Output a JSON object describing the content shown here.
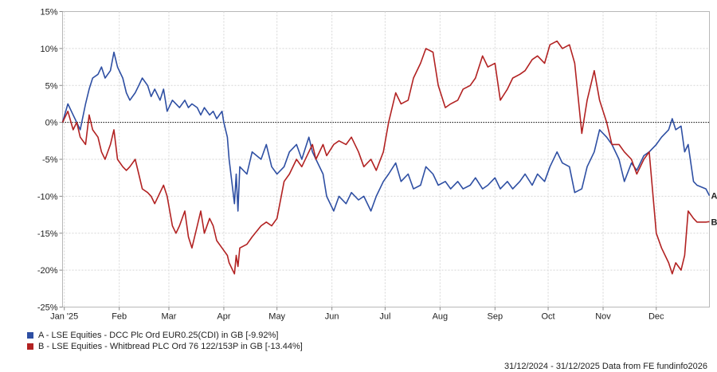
{
  "chart_data": {
    "type": "line",
    "y_unit": "%",
    "ylim": [
      -25,
      15
    ],
    "y_ticks": [
      15,
      10,
      5,
      0,
      -5,
      -10,
      -15,
      -20,
      -25
    ],
    "y_tick_labels": [
      "15%",
      "10%",
      "5%",
      "0%",
      "-5%",
      "-10%",
      "-15%",
      "-20%",
      "-25%"
    ],
    "x_range": [
      "2024-12-31",
      "2025-12-31"
    ],
    "x_ticks": [
      {
        "date": "2025-01-01",
        "label": "Jan '25"
      },
      {
        "date": "2025-02-01",
        "label": "Feb"
      },
      {
        "date": "2025-03-01",
        "label": "Mar"
      },
      {
        "date": "2025-04-01",
        "label": "Apr"
      },
      {
        "date": "2025-05-01",
        "label": "May"
      },
      {
        "date": "2025-06-01",
        "label": "Jun"
      },
      {
        "date": "2025-07-01",
        "label": "Jul"
      },
      {
        "date": "2025-08-01",
        "label": "Aug"
      },
      {
        "date": "2025-09-01",
        "label": "Sep"
      },
      {
        "date": "2025-10-01",
        "label": "Oct"
      },
      {
        "date": "2025-11-01",
        "label": "Nov"
      },
      {
        "date": "2025-12-01",
        "label": "Dec"
      }
    ],
    "grid": true,
    "zero_line": "dotted",
    "legend_position": "bottom-left",
    "series": [
      {
        "name": "A - LSE Equities - DCC Plc Ord EUR0.25(CDI) in GB [-9.92%]",
        "end_label": "A",
        "color": "#2e4fa3",
        "points": [
          [
            "2024-12-31",
            0
          ],
          [
            "2025-01-03",
            2.5
          ],
          [
            "2025-01-06",
            1
          ],
          [
            "2025-01-08",
            0
          ],
          [
            "2025-01-10",
            -1
          ],
          [
            "2025-01-13",
            2.5
          ],
          [
            "2025-01-15",
            4.5
          ],
          [
            "2025-01-17",
            6
          ],
          [
            "2025-01-20",
            6.5
          ],
          [
            "2025-01-22",
            7.5
          ],
          [
            "2025-01-24",
            6
          ],
          [
            "2025-01-27",
            7
          ],
          [
            "2025-01-29",
            9.5
          ],
          [
            "2025-01-31",
            7.5
          ],
          [
            "2025-02-03",
            6
          ],
          [
            "2025-02-05",
            4
          ],
          [
            "2025-02-07",
            3
          ],
          [
            "2025-02-10",
            4
          ],
          [
            "2025-02-12",
            5
          ],
          [
            "2025-02-14",
            6
          ],
          [
            "2025-02-17",
            5
          ],
          [
            "2025-02-19",
            3.5
          ],
          [
            "2025-02-21",
            4.5
          ],
          [
            "2025-02-24",
            3
          ],
          [
            "2025-02-26",
            4.5
          ],
          [
            "2025-02-28",
            1.5
          ],
          [
            "2025-03-03",
            3
          ],
          [
            "2025-03-05",
            2.5
          ],
          [
            "2025-03-07",
            2
          ],
          [
            "2025-03-10",
            3
          ],
          [
            "2025-03-12",
            2
          ],
          [
            "2025-03-14",
            2.5
          ],
          [
            "2025-03-17",
            2
          ],
          [
            "2025-03-19",
            1
          ],
          [
            "2025-03-21",
            2
          ],
          [
            "2025-03-24",
            1
          ],
          [
            "2025-03-26",
            1.5
          ],
          [
            "2025-03-28",
            0.5
          ],
          [
            "2025-03-31",
            1.5
          ],
          [
            "2025-04-01",
            0
          ],
          [
            "2025-04-03",
            -2
          ],
          [
            "2025-04-04",
            -5
          ],
          [
            "2025-04-07",
            -11
          ],
          [
            "2025-04-08",
            -7
          ],
          [
            "2025-04-09",
            -12
          ],
          [
            "2025-04-10",
            -6
          ],
          [
            "2025-04-14",
            -7
          ],
          [
            "2025-04-17",
            -4
          ],
          [
            "2025-04-22",
            -5
          ],
          [
            "2025-04-25",
            -3
          ],
          [
            "2025-04-28",
            -6
          ],
          [
            "2025-05-01",
            -7
          ],
          [
            "2025-05-05",
            -6
          ],
          [
            "2025-05-08",
            -4
          ],
          [
            "2025-05-12",
            -3
          ],
          [
            "2025-05-15",
            -5
          ],
          [
            "2025-05-19",
            -2
          ],
          [
            "2025-05-21",
            -4
          ],
          [
            "2025-05-23",
            -5
          ],
          [
            "2025-05-27",
            -7
          ],
          [
            "2025-05-29",
            -10
          ],
          [
            "2025-06-02",
            -12
          ],
          [
            "2025-06-05",
            -10
          ],
          [
            "2025-06-09",
            -11
          ],
          [
            "2025-06-12",
            -9.5
          ],
          [
            "2025-06-16",
            -10.5
          ],
          [
            "2025-06-19",
            -10
          ],
          [
            "2025-06-23",
            -12
          ],
          [
            "2025-06-26",
            -10
          ],
          [
            "2025-06-30",
            -8
          ],
          [
            "2025-07-03",
            -7
          ],
          [
            "2025-07-07",
            -5.5
          ],
          [
            "2025-07-10",
            -8
          ],
          [
            "2025-07-14",
            -7
          ],
          [
            "2025-07-17",
            -9
          ],
          [
            "2025-07-21",
            -8.5
          ],
          [
            "2025-07-24",
            -6
          ],
          [
            "2025-07-28",
            -7
          ],
          [
            "2025-07-31",
            -8.5
          ],
          [
            "2025-08-04",
            -8
          ],
          [
            "2025-08-07",
            -9
          ],
          [
            "2025-08-11",
            -8
          ],
          [
            "2025-08-14",
            -9
          ],
          [
            "2025-08-18",
            -8.5
          ],
          [
            "2025-08-21",
            -7.5
          ],
          [
            "2025-08-25",
            -9
          ],
          [
            "2025-08-28",
            -8.5
          ],
          [
            "2025-09-01",
            -7.5
          ],
          [
            "2025-09-04",
            -9
          ],
          [
            "2025-09-08",
            -8
          ],
          [
            "2025-09-11",
            -9
          ],
          [
            "2025-09-15",
            -8
          ],
          [
            "2025-09-18",
            -7
          ],
          [
            "2025-09-22",
            -8.5
          ],
          [
            "2025-09-25",
            -7
          ],
          [
            "2025-09-29",
            -8
          ],
          [
            "2025-10-02",
            -6
          ],
          [
            "2025-10-06",
            -4
          ],
          [
            "2025-10-09",
            -5.5
          ],
          [
            "2025-10-13",
            -6
          ],
          [
            "2025-10-16",
            -9.5
          ],
          [
            "2025-10-20",
            -9
          ],
          [
            "2025-10-23",
            -6
          ],
          [
            "2025-10-27",
            -4
          ],
          [
            "2025-10-30",
            -1
          ],
          [
            "2025-11-03",
            -2
          ],
          [
            "2025-11-06",
            -3
          ],
          [
            "2025-11-10",
            -5
          ],
          [
            "2025-11-13",
            -8
          ],
          [
            "2025-11-17",
            -5.5
          ],
          [
            "2025-11-20",
            -6.5
          ],
          [
            "2025-11-24",
            -4.5
          ],
          [
            "2025-11-27",
            -4
          ],
          [
            "2025-12-01",
            -3
          ],
          [
            "2025-12-04",
            -2
          ],
          [
            "2025-12-08",
            -1
          ],
          [
            "2025-12-10",
            0.5
          ],
          [
            "2025-12-12",
            -1
          ],
          [
            "2025-12-15",
            -0.5
          ],
          [
            "2025-12-17",
            -4
          ],
          [
            "2025-12-19",
            -3
          ],
          [
            "2025-12-22",
            -8
          ],
          [
            "2025-12-24",
            -8.5
          ],
          [
            "2025-12-29",
            -9
          ],
          [
            "2025-12-31",
            -9.92
          ]
        ]
      },
      {
        "name": "B - LSE Equities - Whitbread PLC Ord 76 122/153P in GB [-13.44%]",
        "end_label": "B",
        "color": "#b22222",
        "points": [
          [
            "2024-12-31",
            0
          ],
          [
            "2025-01-03",
            1.5
          ],
          [
            "2025-01-06",
            -1
          ],
          [
            "2025-01-08",
            0
          ],
          [
            "2025-01-10",
            -2
          ],
          [
            "2025-01-13",
            -3
          ],
          [
            "2025-01-15",
            1
          ],
          [
            "2025-01-17",
            -1
          ],
          [
            "2025-01-20",
            -2
          ],
          [
            "2025-01-22",
            -4
          ],
          [
            "2025-01-24",
            -5
          ],
          [
            "2025-01-27",
            -3
          ],
          [
            "2025-01-29",
            -1
          ],
          [
            "2025-01-31",
            -5
          ],
          [
            "2025-02-03",
            -6
          ],
          [
            "2025-02-05",
            -6.5
          ],
          [
            "2025-02-07",
            -6
          ],
          [
            "2025-02-10",
            -5
          ],
          [
            "2025-02-12",
            -7
          ],
          [
            "2025-02-14",
            -9
          ],
          [
            "2025-02-17",
            -9.5
          ],
          [
            "2025-02-19",
            -10
          ],
          [
            "2025-02-21",
            -11
          ],
          [
            "2025-02-24",
            -9.5
          ],
          [
            "2025-02-26",
            -8.5
          ],
          [
            "2025-02-28",
            -10
          ],
          [
            "2025-03-03",
            -14
          ],
          [
            "2025-03-05",
            -15
          ],
          [
            "2025-03-07",
            -14
          ],
          [
            "2025-03-10",
            -12
          ],
          [
            "2025-03-12",
            -15.5
          ],
          [
            "2025-03-14",
            -17
          ],
          [
            "2025-03-17",
            -14
          ],
          [
            "2025-03-19",
            -12
          ],
          [
            "2025-03-21",
            -15
          ],
          [
            "2025-03-24",
            -13
          ],
          [
            "2025-03-26",
            -14
          ],
          [
            "2025-03-28",
            -16
          ],
          [
            "2025-03-31",
            -17
          ],
          [
            "2025-04-03",
            -18
          ],
          [
            "2025-04-04",
            -19
          ],
          [
            "2025-04-07",
            -20.5
          ],
          [
            "2025-04-08",
            -18
          ],
          [
            "2025-04-09",
            -19.5
          ],
          [
            "2025-04-10",
            -17
          ],
          [
            "2025-04-14",
            -16.5
          ],
          [
            "2025-04-17",
            -15.5
          ],
          [
            "2025-04-22",
            -14
          ],
          [
            "2025-04-25",
            -13.5
          ],
          [
            "2025-04-28",
            -14
          ],
          [
            "2025-05-01",
            -13
          ],
          [
            "2025-05-05",
            -8
          ],
          [
            "2025-05-08",
            -7
          ],
          [
            "2025-05-12",
            -5
          ],
          [
            "2025-05-15",
            -6
          ],
          [
            "2025-05-19",
            -4
          ],
          [
            "2025-05-21",
            -3
          ],
          [
            "2025-05-23",
            -5
          ],
          [
            "2025-05-27",
            -3
          ],
          [
            "2025-05-29",
            -4.5
          ],
          [
            "2025-06-02",
            -3
          ],
          [
            "2025-06-05",
            -2.5
          ],
          [
            "2025-06-09",
            -3
          ],
          [
            "2025-06-12",
            -2
          ],
          [
            "2025-06-16",
            -4
          ],
          [
            "2025-06-19",
            -6
          ],
          [
            "2025-06-23",
            -5
          ],
          [
            "2025-06-26",
            -6.5
          ],
          [
            "2025-06-30",
            -4
          ],
          [
            "2025-07-03",
            0
          ],
          [
            "2025-07-07",
            4
          ],
          [
            "2025-07-10",
            2.5
          ],
          [
            "2025-07-14",
            3
          ],
          [
            "2025-07-17",
            6
          ],
          [
            "2025-07-21",
            8
          ],
          [
            "2025-07-24",
            10
          ],
          [
            "2025-07-28",
            9.5
          ],
          [
            "2025-07-31",
            5
          ],
          [
            "2025-08-04",
            2
          ],
          [
            "2025-08-07",
            2.5
          ],
          [
            "2025-08-11",
            3
          ],
          [
            "2025-08-14",
            4.5
          ],
          [
            "2025-08-18",
            5
          ],
          [
            "2025-08-21",
            6
          ],
          [
            "2025-08-25",
            9
          ],
          [
            "2025-08-28",
            7.5
          ],
          [
            "2025-09-01",
            8
          ],
          [
            "2025-09-04",
            3
          ],
          [
            "2025-09-08",
            4.5
          ],
          [
            "2025-09-11",
            6
          ],
          [
            "2025-09-15",
            6.5
          ],
          [
            "2025-09-18",
            7
          ],
          [
            "2025-09-22",
            8.5
          ],
          [
            "2025-09-25",
            9
          ],
          [
            "2025-09-29",
            8
          ],
          [
            "2025-10-02",
            10.5
          ],
          [
            "2025-10-06",
            11
          ],
          [
            "2025-10-09",
            10
          ],
          [
            "2025-10-13",
            10.5
          ],
          [
            "2025-10-16",
            8
          ],
          [
            "2025-10-20",
            -1.5
          ],
          [
            "2025-10-23",
            3
          ],
          [
            "2025-10-27",
            7
          ],
          [
            "2025-10-30",
            3
          ],
          [
            "2025-11-03",
            0
          ],
          [
            "2025-11-06",
            -3
          ],
          [
            "2025-11-10",
            -3
          ],
          [
            "2025-11-13",
            -4
          ],
          [
            "2025-11-17",
            -5
          ],
          [
            "2025-11-20",
            -7
          ],
          [
            "2025-11-24",
            -5
          ],
          [
            "2025-11-27",
            -4
          ],
          [
            "2025-12-01",
            -15
          ],
          [
            "2025-12-04",
            -17
          ],
          [
            "2025-12-08",
            -19
          ],
          [
            "2025-12-10",
            -20.5
          ],
          [
            "2025-12-12",
            -19
          ],
          [
            "2025-12-15",
            -20
          ],
          [
            "2025-12-17",
            -18
          ],
          [
            "2025-12-19",
            -12
          ],
          [
            "2025-12-22",
            -13
          ],
          [
            "2025-12-24",
            -13.5
          ],
          [
            "2025-12-29",
            -13.5
          ],
          [
            "2025-12-31",
            -13.44
          ]
        ]
      }
    ]
  },
  "footer_text": "31/12/2024 - 31/12/2025 Data from FE fundinfo2026"
}
